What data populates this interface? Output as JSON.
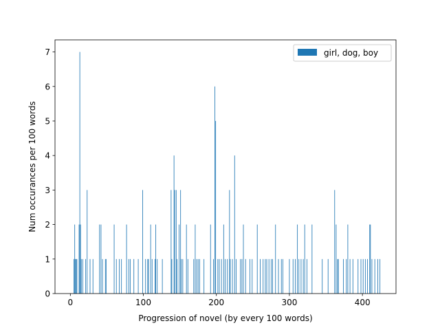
{
  "chart_data": {
    "type": "bar",
    "xlabel": "Progression of novel (by every 100 words)",
    "ylabel": "Num occurances per 100 words",
    "xlim": [
      -21,
      446
    ],
    "ylim": [
      0,
      7.35
    ],
    "xticks": [
      0,
      100,
      200,
      300,
      400
    ],
    "yticks": [
      0,
      1,
      2,
      3,
      4,
      5,
      6,
      7
    ],
    "bar_width": 0.8,
    "grid": false,
    "legend_position": "top-right",
    "colors": {
      "series": "#1f77b4"
    },
    "series": [
      {
        "name": "girl, dog, boy",
        "x": [
          5,
          6,
          7,
          8,
          9,
          12,
          13,
          14,
          15,
          17,
          21,
          23,
          27,
          31,
          40,
          42,
          44,
          48,
          49,
          60,
          63,
          67,
          70,
          77,
          80,
          82,
          87,
          93,
          99,
          103,
          106,
          107,
          110,
          112,
          116,
          117,
          119,
          126,
          138,
          139,
          142,
          143,
          145,
          146,
          149,
          151,
          152,
          154,
          159,
          161,
          169,
          171,
          173,
          175,
          177,
          183,
          192,
          196,
          198,
          199,
          202,
          204,
          207,
          210,
          212,
          215,
          218,
          219,
          222,
          225,
          227,
          233,
          235,
          237,
          240,
          246,
          249,
          256,
          260,
          264,
          267,
          269,
          272,
          275,
          277,
          281,
          285,
          289,
          291,
          300,
          305,
          308,
          311,
          313,
          316,
          319,
          321,
          324,
          331,
          345,
          353,
          362,
          364,
          366,
          367,
          374,
          378,
          380,
          383,
          387,
          394,
          398,
          401,
          404,
          407,
          410,
          411,
          413,
          417,
          421,
          424
        ],
        "values": [
          1,
          2,
          1,
          1,
          1,
          2,
          7,
          2,
          1,
          1,
          1,
          3,
          1,
          1,
          2,
          2,
          1,
          1,
          1,
          2,
          1,
          1,
          1,
          2,
          1,
          1,
          1,
          1,
          3,
          1,
          1,
          1,
          2,
          1,
          1,
          2,
          1,
          1,
          3,
          1,
          4,
          3,
          3,
          1,
          2,
          3,
          1,
          1,
          2,
          1,
          1,
          2,
          1,
          1,
          1,
          1,
          2,
          1,
          6,
          5,
          1,
          1,
          1,
          2,
          1,
          1,
          3,
          1,
          1,
          4,
          1,
          1,
          1,
          2,
          1,
          1,
          1,
          2,
          1,
          1,
          1,
          1,
          1,
          1,
          1,
          2,
          1,
          1,
          1,
          1,
          1,
          1,
          2,
          1,
          1,
          1,
          2,
          1,
          2,
          1,
          1,
          3,
          2,
          1,
          1,
          1,
          1,
          2,
          1,
          1,
          1,
          1,
          1,
          1,
          1,
          2,
          2,
          1,
          1,
          1,
          1
        ]
      }
    ]
  }
}
